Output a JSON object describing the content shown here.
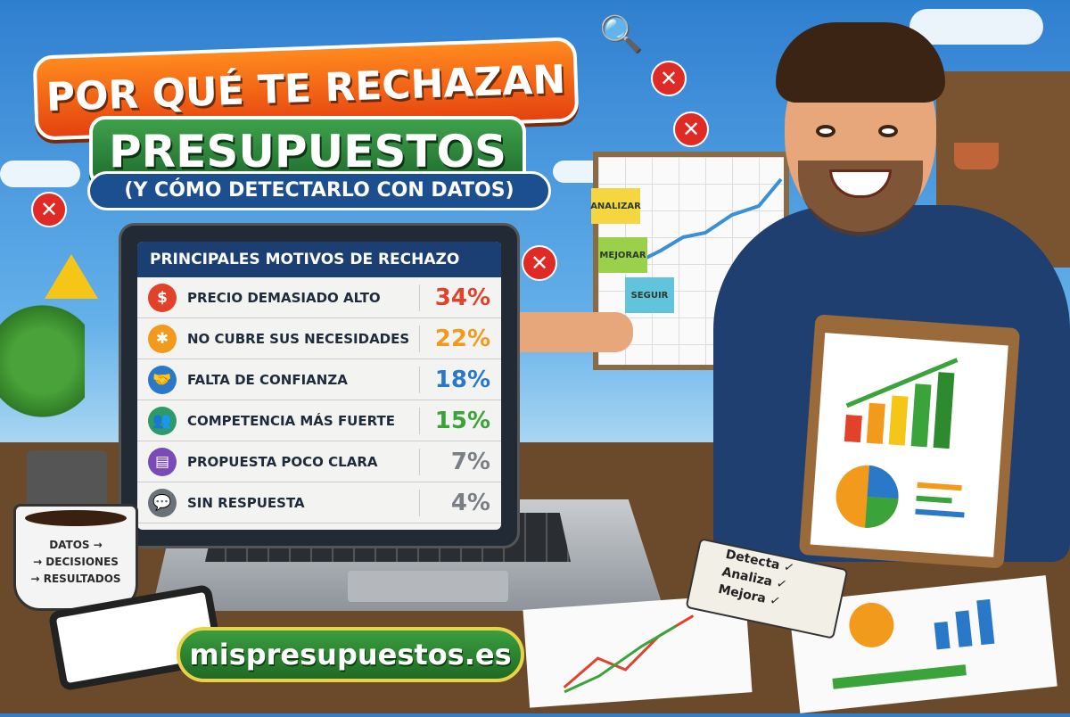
{
  "title": {
    "line1": "POR QUÉ TE RECHAZAN",
    "line2": "PRESUPUESTOS",
    "line3": "(Y CÓMO DETECTARLO CON DATOS)"
  },
  "laptop_screen": {
    "heading": "PRINCIPALES MOTIVOS DE RECHAZO",
    "reasons": [
      {
        "label": "PRECIO DEMASIADO ALTO",
        "percent": "34%",
        "icon": "dollar-icon",
        "color": "#e2412a",
        "glyph": "$"
      },
      {
        "label": "NO CUBRE SUS NECESIDADES",
        "percent": "22%",
        "icon": "puzzle-icon",
        "color": "#f29a1c",
        "glyph": "✱"
      },
      {
        "label": "FALTA DE CONFIANZA",
        "percent": "18%",
        "icon": "handshake-icon",
        "color": "#2a78c8",
        "glyph": "🤝"
      },
      {
        "label": "COMPETENCIA MÁS FUERTE",
        "percent": "15%",
        "icon": "group-icon",
        "color": "#2e9a6a",
        "glyph": "👥"
      },
      {
        "label": "PROPUESTA POCO CLARA",
        "percent": "7%",
        "icon": "document-icon",
        "color": "#7a4ab8",
        "glyph": "▤"
      },
      {
        "label": "SIN RESPUESTA",
        "percent": "4%",
        "icon": "chat-icon",
        "color": "#6b7178",
        "glyph": "💬"
      }
    ],
    "percent_colors": [
      "#e2412a",
      "#f29a1c",
      "#2a78c8",
      "#3aa33a",
      "#7a7f86",
      "#7a7f86"
    ]
  },
  "whiteboard": {
    "notes": [
      "ANALIZAR",
      "MEJORAR",
      "SEGUIR"
    ]
  },
  "mug": {
    "lines": [
      "DATOS →",
      "→ DECISIONES",
      "→ RESULTADOS"
    ]
  },
  "notebook": {
    "lines": [
      "Detecta ✓",
      "Analiza ✓",
      "Mejora ✓"
    ]
  },
  "website": "mispresupuestos.es"
}
